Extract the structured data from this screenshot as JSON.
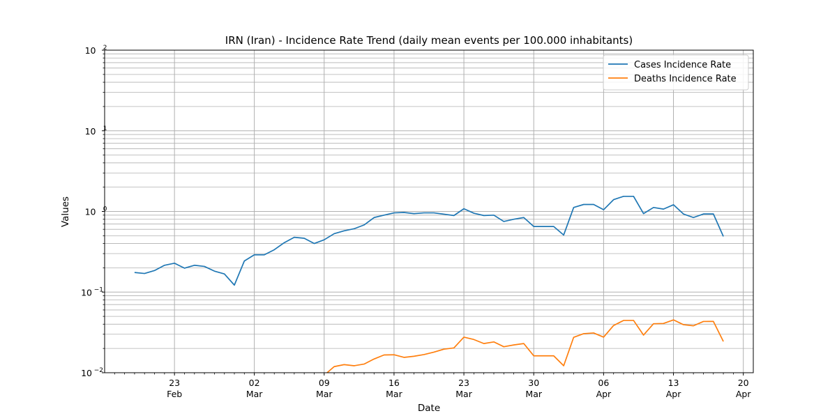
{
  "chart_data": {
    "type": "line",
    "title": "IRN (Iran) - Incidence Rate Trend (daily mean events per 100.000 inhabitants)",
    "xlabel": "Date",
    "ylabel": "Values",
    "y_scale": "log",
    "ylim": [
      0.01,
      100
    ],
    "y_ticks": [
      {
        "value": 0.01,
        "base": "10",
        "exp": "−2"
      },
      {
        "value": 0.1,
        "base": "10",
        "exp": "−1"
      },
      {
        "value": 1,
        "base": "10",
        "exp": "0"
      },
      {
        "value": 10,
        "base": "10",
        "exp": "1"
      },
      {
        "value": 100,
        "base": "10",
        "exp": "2"
      }
    ],
    "xlim": [
      "2020-02-16",
      "2020-04-21"
    ],
    "x_ticks": [
      {
        "date": "2020-02-23",
        "day": "23",
        "month": "Feb"
      },
      {
        "date": "2020-03-02",
        "day": "02",
        "month": "Mar"
      },
      {
        "date": "2020-03-09",
        "day": "09",
        "month": "Mar"
      },
      {
        "date": "2020-03-16",
        "day": "16",
        "month": "Mar"
      },
      {
        "date": "2020-03-23",
        "day": "23",
        "month": "Mar"
      },
      {
        "date": "2020-03-30",
        "day": "30",
        "month": "Mar"
      },
      {
        "date": "2020-04-06",
        "day": "06",
        "month": "Apr"
      },
      {
        "date": "2020-04-13",
        "day": "13",
        "month": "Apr"
      },
      {
        "date": "2020-04-20",
        "day": "20",
        "month": "Apr"
      }
    ],
    "grid": true,
    "legend_position": "top-right",
    "series": [
      {
        "name": "Cases Incidence Rate",
        "color": "#1f77b4",
        "start_date": "2020-02-19",
        "values": [
          0.175,
          0.17,
          0.185,
          0.215,
          0.228,
          0.198,
          0.215,
          0.208,
          0.182,
          0.168,
          0.122,
          0.243,
          0.29,
          0.29,
          0.335,
          0.41,
          0.478,
          0.465,
          0.4,
          0.445,
          0.53,
          0.575,
          0.61,
          0.68,
          0.84,
          0.9,
          0.96,
          0.97,
          0.94,
          0.96,
          0.96,
          0.925,
          0.89,
          1.08,
          0.95,
          0.89,
          0.9,
          0.75,
          0.8,
          0.84,
          0.65,
          0.65,
          0.65,
          0.51,
          1.12,
          1.22,
          1.22,
          1.05,
          1.4,
          1.54,
          1.54,
          0.94,
          1.12,
          1.07,
          1.21,
          0.93,
          0.84,
          0.93,
          0.93,
          0.49
        ]
      },
      {
        "name": "Deaths Incidence Rate",
        "color": "#ff7f0e",
        "start_date": "2020-03-09",
        "values": [
          0.0093,
          0.0119,
          0.0126,
          0.0122,
          0.0128,
          0.0148,
          0.0166,
          0.0167,
          0.0155,
          0.016,
          0.0168,
          0.018,
          0.0196,
          0.0203,
          0.0276,
          0.0258,
          0.023,
          0.0241,
          0.021,
          0.0221,
          0.023,
          0.0162,
          0.0162,
          0.0162,
          0.0122,
          0.0275,
          0.0305,
          0.0311,
          0.0276,
          0.0385,
          0.0445,
          0.0445,
          0.0293,
          0.0405,
          0.0408,
          0.0452,
          0.0394,
          0.0382,
          0.0432,
          0.0433,
          0.0244
        ]
      }
    ]
  }
}
